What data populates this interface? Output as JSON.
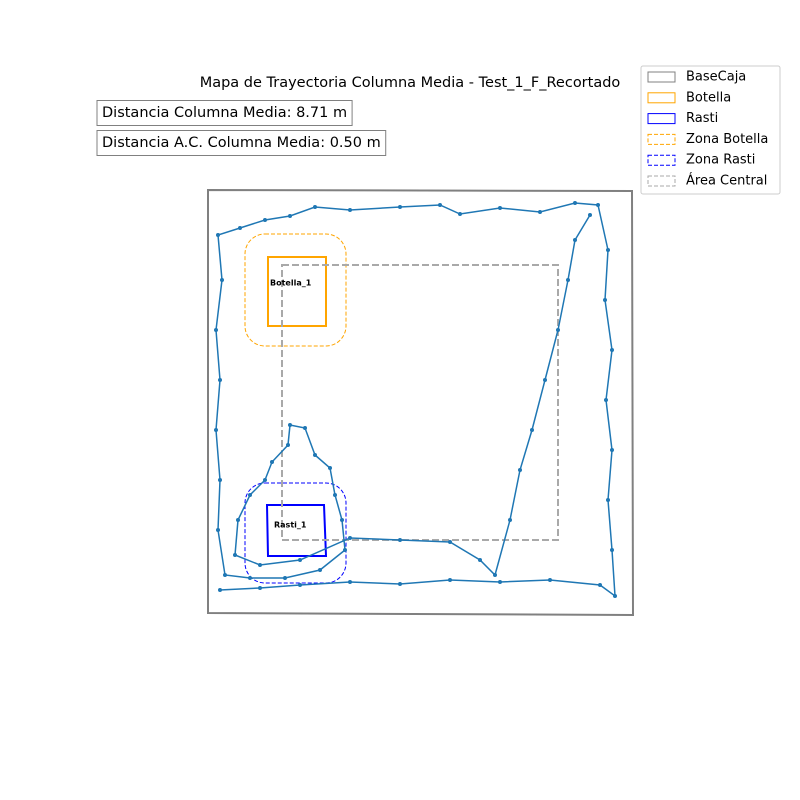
{
  "chart_data": {
    "type": "trajectory",
    "title": "Mapa de Trayectoria Columna Media - Test_1_F_Recortado",
    "annotations": [
      "Distancia Columna Media: 8.71 m",
      "Distancia A.C. Columna Media: 0.50 m"
    ],
    "xlim": [
      0,
      425
    ],
    "ylim": [
      0,
      425
    ],
    "trajectory": {
      "color": "#1f77b4",
      "x": [
        12,
        52,
        92,
        142,
        192,
        242,
        292,
        342,
        392,
        407,
        404,
        400,
        404,
        398,
        404,
        397,
        400,
        390,
        367,
        332,
        292,
        252,
        232,
        192,
        142,
        107,
        82,
        57,
        32,
        10,
        14,
        8,
        12,
        8,
        12,
        10,
        17,
        42,
        77,
        112,
        137,
        134,
        127,
        122,
        107,
        97,
        82,
        80,
        64,
        57,
        42,
        30,
        27,
        52,
        92,
        142,
        192,
        242,
        272,
        287,
        302,
        312,
        324,
        337,
        350,
        360,
        367,
        382
      ],
      "y": [
        25,
        27,
        30,
        33,
        31,
        35,
        33,
        35,
        30,
        19,
        65,
        115,
        165,
        215,
        265,
        315,
        365,
        410,
        412,
        403,
        407,
        401,
        410,
        408,
        405,
        408,
        399,
        395,
        387,
        380,
        335,
        285,
        235,
        185,
        135,
        85,
        40,
        37,
        37,
        45,
        65,
        95,
        120,
        147,
        160,
        187,
        190,
        170,
        153,
        135,
        120,
        95,
        60,
        50,
        55,
        77,
        75,
        73,
        55,
        40,
        95,
        145,
        185,
        235,
        285,
        335,
        375,
        400
      ]
    },
    "shapes": [
      {
        "name": "BaseCaja",
        "color": "#808080",
        "style": "solid",
        "x": [
          0,
          424,
          425,
          0
        ],
        "y": [
          425,
          424,
          0,
          2
        ]
      },
      {
        "name": "Botella",
        "color": "#ffa500",
        "style": "solid",
        "x": [
          60,
          118,
          118,
          60
        ],
        "y": [
          358,
          358,
          289,
          289
        ]
      },
      {
        "name": "Rasti",
        "color": "#0000ff",
        "style": "solid",
        "x": [
          59,
          116,
          118,
          60
        ],
        "y": [
          110,
          110,
          59,
          59
        ]
      },
      {
        "name": "Zona Botella",
        "color": "#ffa500",
        "style": "dashed",
        "rounded": true,
        "x": [
          37,
          138,
          138,
          37
        ],
        "y": [
          381,
          381,
          269,
          269
        ]
      },
      {
        "name": "Zona Rasti",
        "color": "#0000ff",
        "style": "dashed",
        "rounded": true,
        "x": [
          37,
          138,
          138,
          37
        ],
        "y": [
          132,
          132,
          32,
          32
        ]
      },
      {
        "name": "Área Central",
        "color": "#a9a9a9",
        "style": "dashed",
        "x": [
          74,
          350,
          350,
          74
        ],
        "y": [
          350,
          350,
          75,
          75
        ]
      }
    ],
    "labels": [
      {
        "text": "Botella_1",
        "x": 62,
        "y": 332
      },
      {
        "text": "Rasti_1",
        "x": 66,
        "y": 90
      }
    ]
  }
}
